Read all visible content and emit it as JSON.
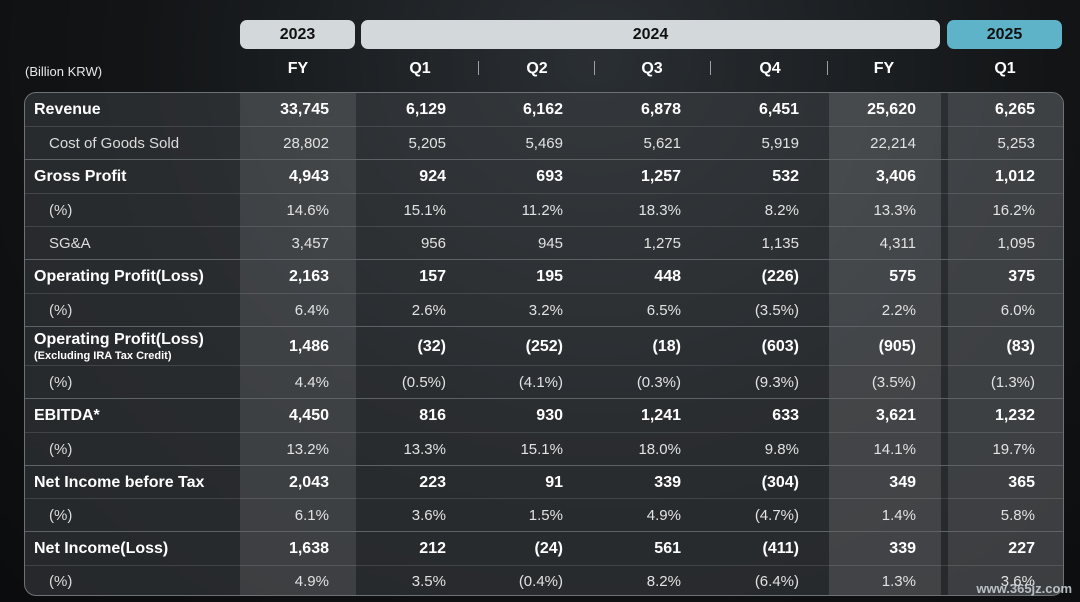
{
  "header": {
    "years": [
      "2023",
      "2024",
      "2025"
    ],
    "unit": "(Billion KRW)",
    "periods": [
      "FY",
      "Q1",
      "Q2",
      "Q3",
      "Q4",
      "FY",
      "Q1"
    ]
  },
  "rows": [
    {
      "label": "Revenue",
      "values": [
        "33,745",
        "6,129",
        "6,162",
        "6,878",
        "6,451",
        "25,620",
        "6,265"
      ]
    },
    {
      "label": "Cost of Goods Sold",
      "values": [
        "28,802",
        "5,205",
        "5,469",
        "5,621",
        "5,919",
        "22,214",
        "5,253"
      ]
    },
    {
      "label": "Gross Profit",
      "values": [
        "4,943",
        "924",
        "693",
        "1,257",
        "532",
        "3,406",
        "1,012"
      ]
    },
    {
      "label": "(%)",
      "values": [
        "14.6%",
        "15.1%",
        "11.2%",
        "18.3%",
        "8.2%",
        "13.3%",
        "16.2%"
      ]
    },
    {
      "label": "SG&A",
      "values": [
        "3,457",
        "956",
        "945",
        "1,275",
        "1,135",
        "4,311",
        "1,095"
      ]
    },
    {
      "label": "Operating Profit(Loss)",
      "values": [
        "2,163",
        "157",
        "195",
        "448",
        "(226)",
        "575",
        "375"
      ]
    },
    {
      "label": "(%)",
      "values": [
        "6.4%",
        "2.6%",
        "3.2%",
        "6.5%",
        "(3.5%)",
        "2.2%",
        "6.0%"
      ]
    },
    {
      "label": "Operating Profit(Loss)",
      "note": "(Excluding IRA Tax Credit)",
      "values": [
        "1,486",
        "(32)",
        "(252)",
        "(18)",
        "(603)",
        "(905)",
        "(83)"
      ]
    },
    {
      "label": "(%)",
      "values": [
        "4.4%",
        "(0.5%)",
        "(4.1%)",
        "(0.3%)",
        "(9.3%)",
        "(3.5%)",
        "(1.3%)"
      ]
    },
    {
      "label": "EBITDA*",
      "values": [
        "4,450",
        "816",
        "930",
        "1,241",
        "633",
        "3,621",
        "1,232"
      ]
    },
    {
      "label": "(%)",
      "values": [
        "13.2%",
        "13.3%",
        "15.1%",
        "18.0%",
        "9.8%",
        "14.1%",
        "19.7%"
      ]
    },
    {
      "label": "Net Income before Tax",
      "values": [
        "2,043",
        "223",
        "91",
        "339",
        "(304)",
        "349",
        "365"
      ]
    },
    {
      "label": "(%)",
      "values": [
        "6.1%",
        "3.6%",
        "1.5%",
        "4.9%",
        "(4.7%)",
        "1.4%",
        "5.8%"
      ]
    },
    {
      "label": "Net Income(Loss)",
      "values": [
        "1,638",
        "212",
        "(24)",
        "561",
        "(411)",
        "339",
        "227"
      ]
    },
    {
      "label": "(%)",
      "values": [
        "4.9%",
        "3.5%",
        "(0.4%)",
        "8.2%",
        "(6.4%)",
        "1.3%",
        "3.6%"
      ]
    }
  ],
  "watermark": "www.365jz.com"
}
